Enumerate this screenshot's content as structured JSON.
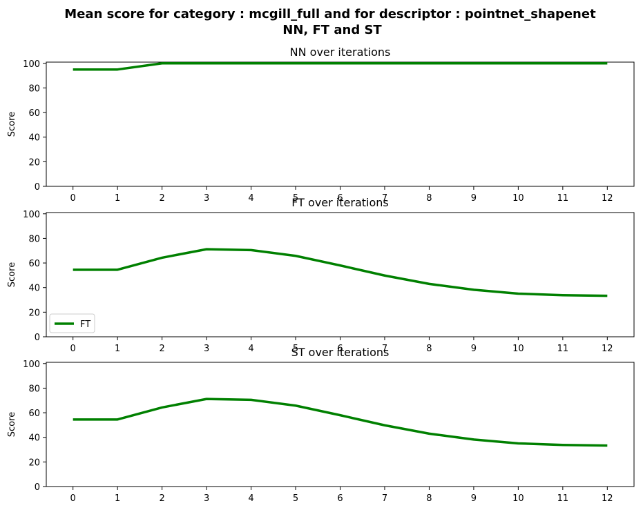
{
  "figure": {
    "title_line1": "Mean score for category : mcgill_full and for descriptor : pointnet_shapenet",
    "title_line2": "NN, FT and ST"
  },
  "chart_data": [
    {
      "type": "line",
      "title": "NN over iterations",
      "xlabel": "",
      "ylabel": "Score",
      "x": [
        0,
        1,
        2,
        3,
        4,
        5,
        6,
        7,
        8,
        9,
        10,
        11,
        12
      ],
      "ylim": [
        0,
        101
      ],
      "yticks": [
        0,
        20,
        40,
        60,
        80,
        100
      ],
      "grid": false,
      "series": [
        {
          "color": "#008000",
          "values": [
            95,
            95,
            100,
            100,
            100,
            100,
            100,
            100,
            100,
            100,
            100,
            100,
            100
          ]
        }
      ],
      "legend": null
    },
    {
      "type": "line",
      "title": "FT over iterations",
      "xlabel": "",
      "ylabel": "Score",
      "x": [
        0,
        1,
        2,
        3,
        4,
        5,
        6,
        7,
        8,
        9,
        10,
        11,
        12
      ],
      "ylim": [
        0,
        101
      ],
      "yticks": [
        0,
        20,
        40,
        60,
        80,
        100
      ],
      "grid": false,
      "series": [
        {
          "name": "FT",
          "color": "#008000",
          "values": [
            54.5,
            54.5,
            64.3,
            71.2,
            70.5,
            65.8,
            58.0,
            49.8,
            43.0,
            38.2,
            35.1,
            33.8,
            33.3
          ]
        }
      ],
      "legend": "lower-left"
    },
    {
      "type": "line",
      "title": "ST over iterations",
      "xlabel": "",
      "ylabel": "Score",
      "x": [
        0,
        1,
        2,
        3,
        4,
        5,
        6,
        7,
        8,
        9,
        10,
        11,
        12
      ],
      "ylim": [
        0,
        101
      ],
      "yticks": [
        0,
        20,
        40,
        60,
        80,
        100
      ],
      "grid": false,
      "series": [
        {
          "color": "#008000",
          "values": [
            54.5,
            54.5,
            64.3,
            71.2,
            70.5,
            65.8,
            58.0,
            49.8,
            43.0,
            38.2,
            35.1,
            33.8,
            33.3
          ]
        }
      ],
      "legend": null
    }
  ]
}
